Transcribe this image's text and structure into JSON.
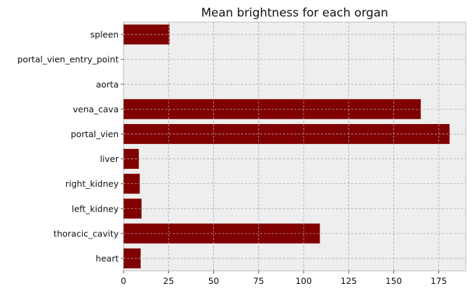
{
  "chart_data": {
    "type": "bar",
    "orientation": "horizontal",
    "title": "Mean brightness for each organ",
    "xlabel": "",
    "ylabel": "",
    "categories": [
      "heart",
      "thoracic_cavity",
      "left_kidney",
      "right_kidney",
      "liver",
      "portal_vien",
      "vena_cava",
      "aorta",
      "portal_vien_entry_point",
      "spleen"
    ],
    "values": [
      9.5,
      109,
      10,
      9,
      8.5,
      181,
      165,
      0,
      0,
      25.5
    ],
    "xlim": [
      0,
      190
    ],
    "xticks": [
      0,
      25,
      50,
      75,
      100,
      125,
      150,
      175
    ],
    "grid": true,
    "bar_color": "#800000",
    "background_color": "#eeeeee"
  }
}
